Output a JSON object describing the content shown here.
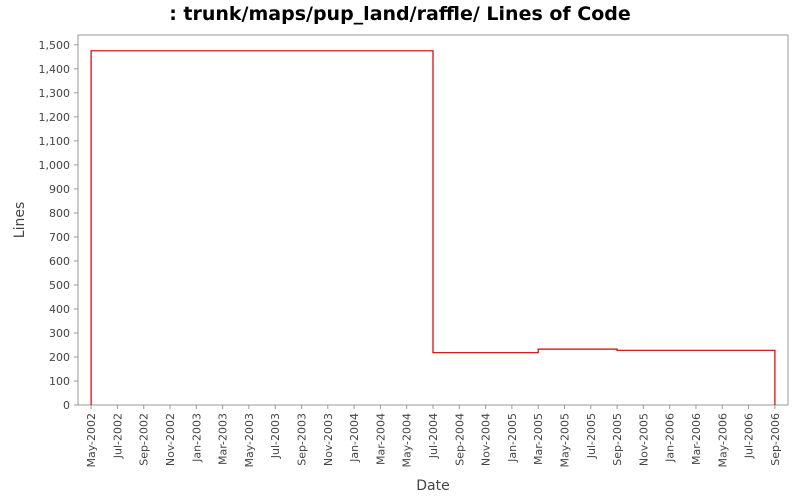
{
  "chart_data": {
    "type": "line",
    "title": ": trunk/maps/pup_land/raffle/ Lines of Code",
    "x_label": "Date",
    "y_label": "Lines",
    "x": [
      "2002-05",
      "2002-05",
      "2004-07",
      "2004-07",
      "2005-03",
      "2005-03",
      "2005-09",
      "2005-09",
      "2006-09",
      "2006-09"
    ],
    "series": [
      {
        "name": "Lines",
        "color": "#cc0000",
        "values": [
          0,
          1475,
          1475,
          218,
          218,
          233,
          233,
          228,
          228,
          0
        ]
      }
    ],
    "xlim": [
      "2002-04",
      "2006-10"
    ],
    "xticks": [
      {
        "value": "2002-05",
        "label": "May-2002"
      },
      {
        "value": "2002-07",
        "label": "Jul-2002"
      },
      {
        "value": "2002-09",
        "label": "Sep-2002"
      },
      {
        "value": "2002-11",
        "label": "Nov-2002"
      },
      {
        "value": "2003-01",
        "label": "Jan-2003"
      },
      {
        "value": "2003-03",
        "label": "Mar-2003"
      },
      {
        "value": "2003-05",
        "label": "May-2003"
      },
      {
        "value": "2003-07",
        "label": "Jul-2003"
      },
      {
        "value": "2003-09",
        "label": "Sep-2003"
      },
      {
        "value": "2003-11",
        "label": "Nov-2003"
      },
      {
        "value": "2004-01",
        "label": "Jan-2004"
      },
      {
        "value": "2004-03",
        "label": "Mar-2004"
      },
      {
        "value": "2004-05",
        "label": "May-2004"
      },
      {
        "value": "2004-07",
        "label": "Jul-2004"
      },
      {
        "value": "2004-09",
        "label": "Sep-2004"
      },
      {
        "value": "2004-11",
        "label": "Nov-2004"
      },
      {
        "value": "2005-01",
        "label": "Jan-2005"
      },
      {
        "value": "2005-03",
        "label": "Mar-2005"
      },
      {
        "value": "2005-05",
        "label": "May-2005"
      },
      {
        "value": "2005-07",
        "label": "Jul-2005"
      },
      {
        "value": "2005-09",
        "label": "Sep-2005"
      },
      {
        "value": "2005-11",
        "label": "Nov-2005"
      },
      {
        "value": "2006-01",
        "label": "Jan-2006"
      },
      {
        "value": "2006-03",
        "label": "Mar-2006"
      },
      {
        "value": "2006-05",
        "label": "May-2006"
      },
      {
        "value": "2006-07",
        "label": "Jul-2006"
      },
      {
        "value": "2006-09",
        "label": "Sep-2006"
      }
    ],
    "ylim": [
      0,
      1541
    ],
    "yticks": [
      0,
      100,
      200,
      300,
      400,
      500,
      600,
      700,
      800,
      900,
      {
        "value": 1000,
        "label": "1,000"
      },
      {
        "value": 1100,
        "label": "1,100"
      },
      {
        "value": 1200,
        "label": "1,200"
      },
      {
        "value": 1300,
        "label": "1,300"
      },
      {
        "value": 1400,
        "label": "1,400"
      },
      {
        "value": 1500,
        "label": "1,500"
      }
    ],
    "grid": false
  }
}
